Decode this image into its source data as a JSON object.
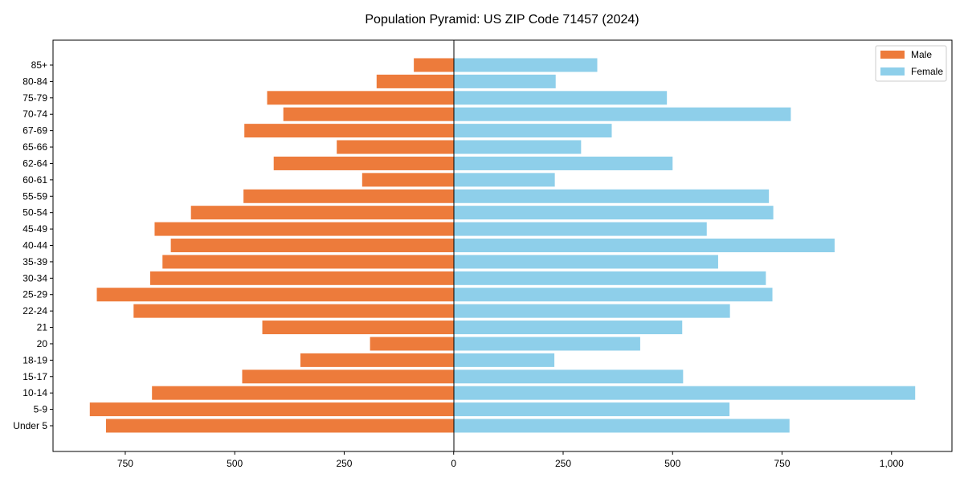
{
  "chart_data": {
    "type": "bar",
    "orientation": "horizontal",
    "title": "Population Pyramid: US ZIP Code 71457 (2024)",
    "xlabel": "",
    "ylabel": "",
    "categories": [
      "Under 5",
      "5-9",
      "10-14",
      "15-17",
      "18-19",
      "20",
      "21",
      "22-24",
      "25-29",
      "30-34",
      "35-39",
      "40-44",
      "45-49",
      "50-54",
      "55-59",
      "60-61",
      "62-64",
      "65-66",
      "67-69",
      "70-74",
      "75-79",
      "80-84",
      "85+"
    ],
    "series": [
      {
        "name": "Male",
        "color": "#ED7B3B",
        "values": [
          794,
          831,
          689,
          483,
          350,
          191,
          437,
          731,
          815,
          693,
          665,
          646,
          683,
          600,
          480,
          209,
          411,
          267,
          478,
          389,
          426,
          176,
          91
        ]
      },
      {
        "name": "Female",
        "color": "#8ECFEA",
        "values": [
          767,
          630,
          1054,
          524,
          230,
          426,
          522,
          631,
          728,
          713,
          604,
          870,
          578,
          730,
          720,
          231,
          500,
          291,
          361,
          770,
          487,
          233,
          328
        ]
      }
    ],
    "xlim": [
      -915,
      1138
    ],
    "xticks": [
      -750,
      -500,
      -250,
      0,
      250,
      500,
      750,
      1000
    ],
    "xtick_labels": [
      "750",
      "500",
      "250",
      "0",
      "250",
      "500",
      "750",
      "1,000"
    ],
    "legend_position": "top-right",
    "grid": false
  }
}
